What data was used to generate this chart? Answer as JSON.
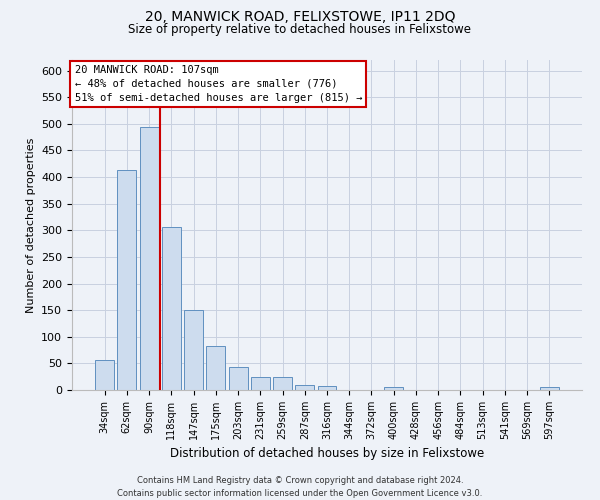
{
  "title": "20, MANWICK ROAD, FELIXSTOWE, IP11 2DQ",
  "subtitle": "Size of property relative to detached houses in Felixstowe",
  "bar_labels": [
    "34sqm",
    "62sqm",
    "90sqm",
    "118sqm",
    "147sqm",
    "175sqm",
    "203sqm",
    "231sqm",
    "259sqm",
    "287sqm",
    "316sqm",
    "344sqm",
    "372sqm",
    "400sqm",
    "428sqm",
    "456sqm",
    "484sqm",
    "513sqm",
    "541sqm",
    "569sqm",
    "597sqm"
  ],
  "bar_values": [
    57,
    413,
    495,
    307,
    150,
    82,
    44,
    25,
    25,
    10,
    7,
    0,
    0,
    5,
    0,
    0,
    0,
    0,
    0,
    0,
    5
  ],
  "bar_color": "#cddcee",
  "bar_edge_color": "#6090c0",
  "ylim": [
    0,
    620
  ],
  "yticks": [
    0,
    50,
    100,
    150,
    200,
    250,
    300,
    350,
    400,
    450,
    500,
    550,
    600
  ],
  "ylabel": "Number of detached properties",
  "xlabel": "Distribution of detached houses by size in Felixstowe",
  "vline_color": "#cc0000",
  "annotation_title": "20 MANWICK ROAD: 107sqm",
  "annotation_line1": "← 48% of detached houses are smaller (776)",
  "annotation_line2": "51% of semi-detached houses are larger (815) →",
  "annotation_box_color": "#cc0000",
  "footer_line1": "Contains HM Land Registry data © Crown copyright and database right 2024.",
  "footer_line2": "Contains public sector information licensed under the Open Government Licence v3.0.",
  "background_color": "#eef2f8",
  "plot_bg_color": "#eef2f8",
  "grid_color": "#c8d0e0"
}
